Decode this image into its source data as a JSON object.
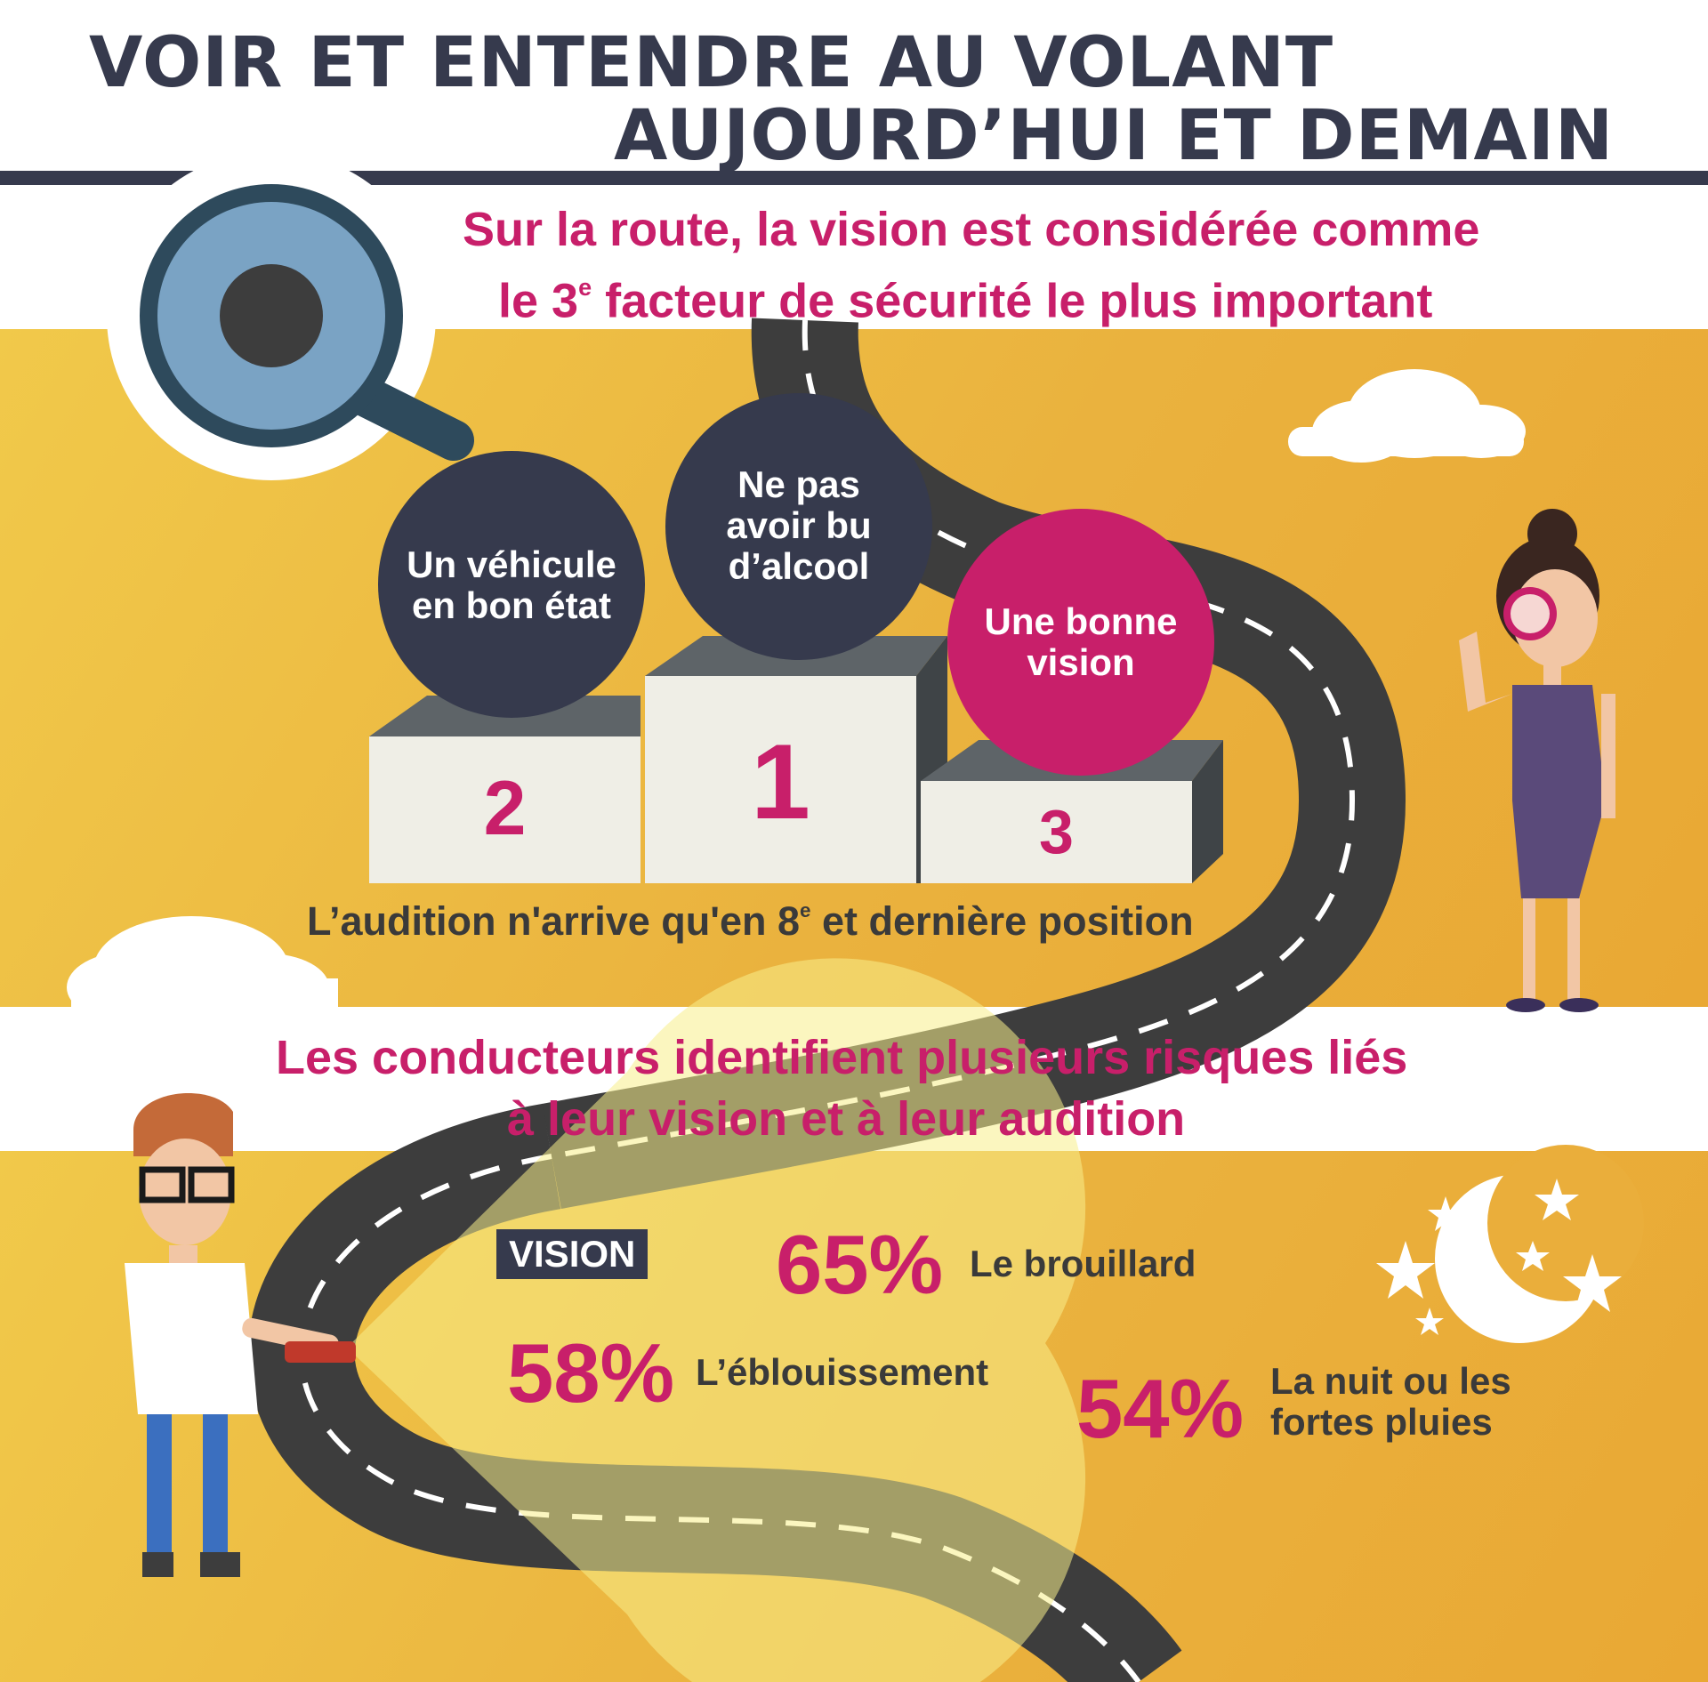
{
  "title": {
    "line1": "VOIR ET ENTENDRE AU VOLANT",
    "line2": "AUJOURD’HUI ET DEMAIN"
  },
  "section1": {
    "heading_line1": "Sur la route, la vision est considérée comme",
    "heading_line2_pre": "le 3",
    "heading_line2_sup": "e",
    "heading_line2_post": " facteur de sécurité le plus important",
    "podium": [
      {
        "rank": "2",
        "label": "Un véhicule en bon état"
      },
      {
        "rank": "1",
        "label": "Ne pas avoir bu d’alcool"
      },
      {
        "rank": "3",
        "label": "Une bonne vision"
      }
    ],
    "note_pre": "L’audition n'arrive qu'en 8",
    "note_sup": "e",
    "note_post": " et dernière position"
  },
  "section2": {
    "heading_line1": "Les conducteurs identifient plusieurs risques liés",
    "heading_line2": "à leur vision et à leur audition",
    "tag": "VISION",
    "items": [
      {
        "pct": "65%",
        "label": "Le brouillard"
      },
      {
        "pct": "58%",
        "label": "L’éblouissement"
      },
      {
        "pct": "54%",
        "label": "La nuit ou les fortes pluies"
      }
    ]
  },
  "colors": {
    "navy": "#363a4d",
    "magenta": "#c81f6a",
    "yellow": "#eab23e",
    "road": "#3d3d3d"
  },
  "icons": [
    "magnifier-eye-icon",
    "cloud-icon",
    "woman-with-magnifier-illustration",
    "man-with-flashlight-illustration",
    "moon-icon",
    "star-icon"
  ]
}
